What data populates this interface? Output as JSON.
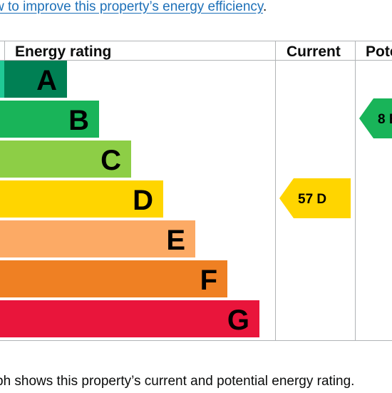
{
  "intro": {
    "link_text": "w to improve this property’s energy efficiency",
    "suffix": "."
  },
  "footer": {
    "text": "ph shows this property’s current and potential energy rating."
  },
  "chart_data": {
    "type": "bar",
    "columns": {
      "rating": "Energy rating",
      "current": "Current",
      "potential": "Pote"
    },
    "bands": [
      {
        "letter": "A",
        "color": "#008054"
      },
      {
        "letter": "B",
        "color": "#19b459"
      },
      {
        "letter": "C",
        "color": "#8dce46"
      },
      {
        "letter": "D",
        "color": "#ffd500"
      },
      {
        "letter": "E",
        "color": "#fcaa65"
      },
      {
        "letter": "F",
        "color": "#ef8023"
      },
      {
        "letter": "G",
        "color": "#e9153b"
      }
    ],
    "band_colors_shown": [
      "#20c996",
      "#19b459",
      "#8dce46",
      "#ffd500",
      "#fcaa65",
      "#ef8023",
      "#e9153b"
    ],
    "current": {
      "score": "57",
      "band": "D",
      "color": "#ffd500"
    },
    "potential": {
      "score": "8",
      "band": "B",
      "color": "#19b459"
    }
  }
}
